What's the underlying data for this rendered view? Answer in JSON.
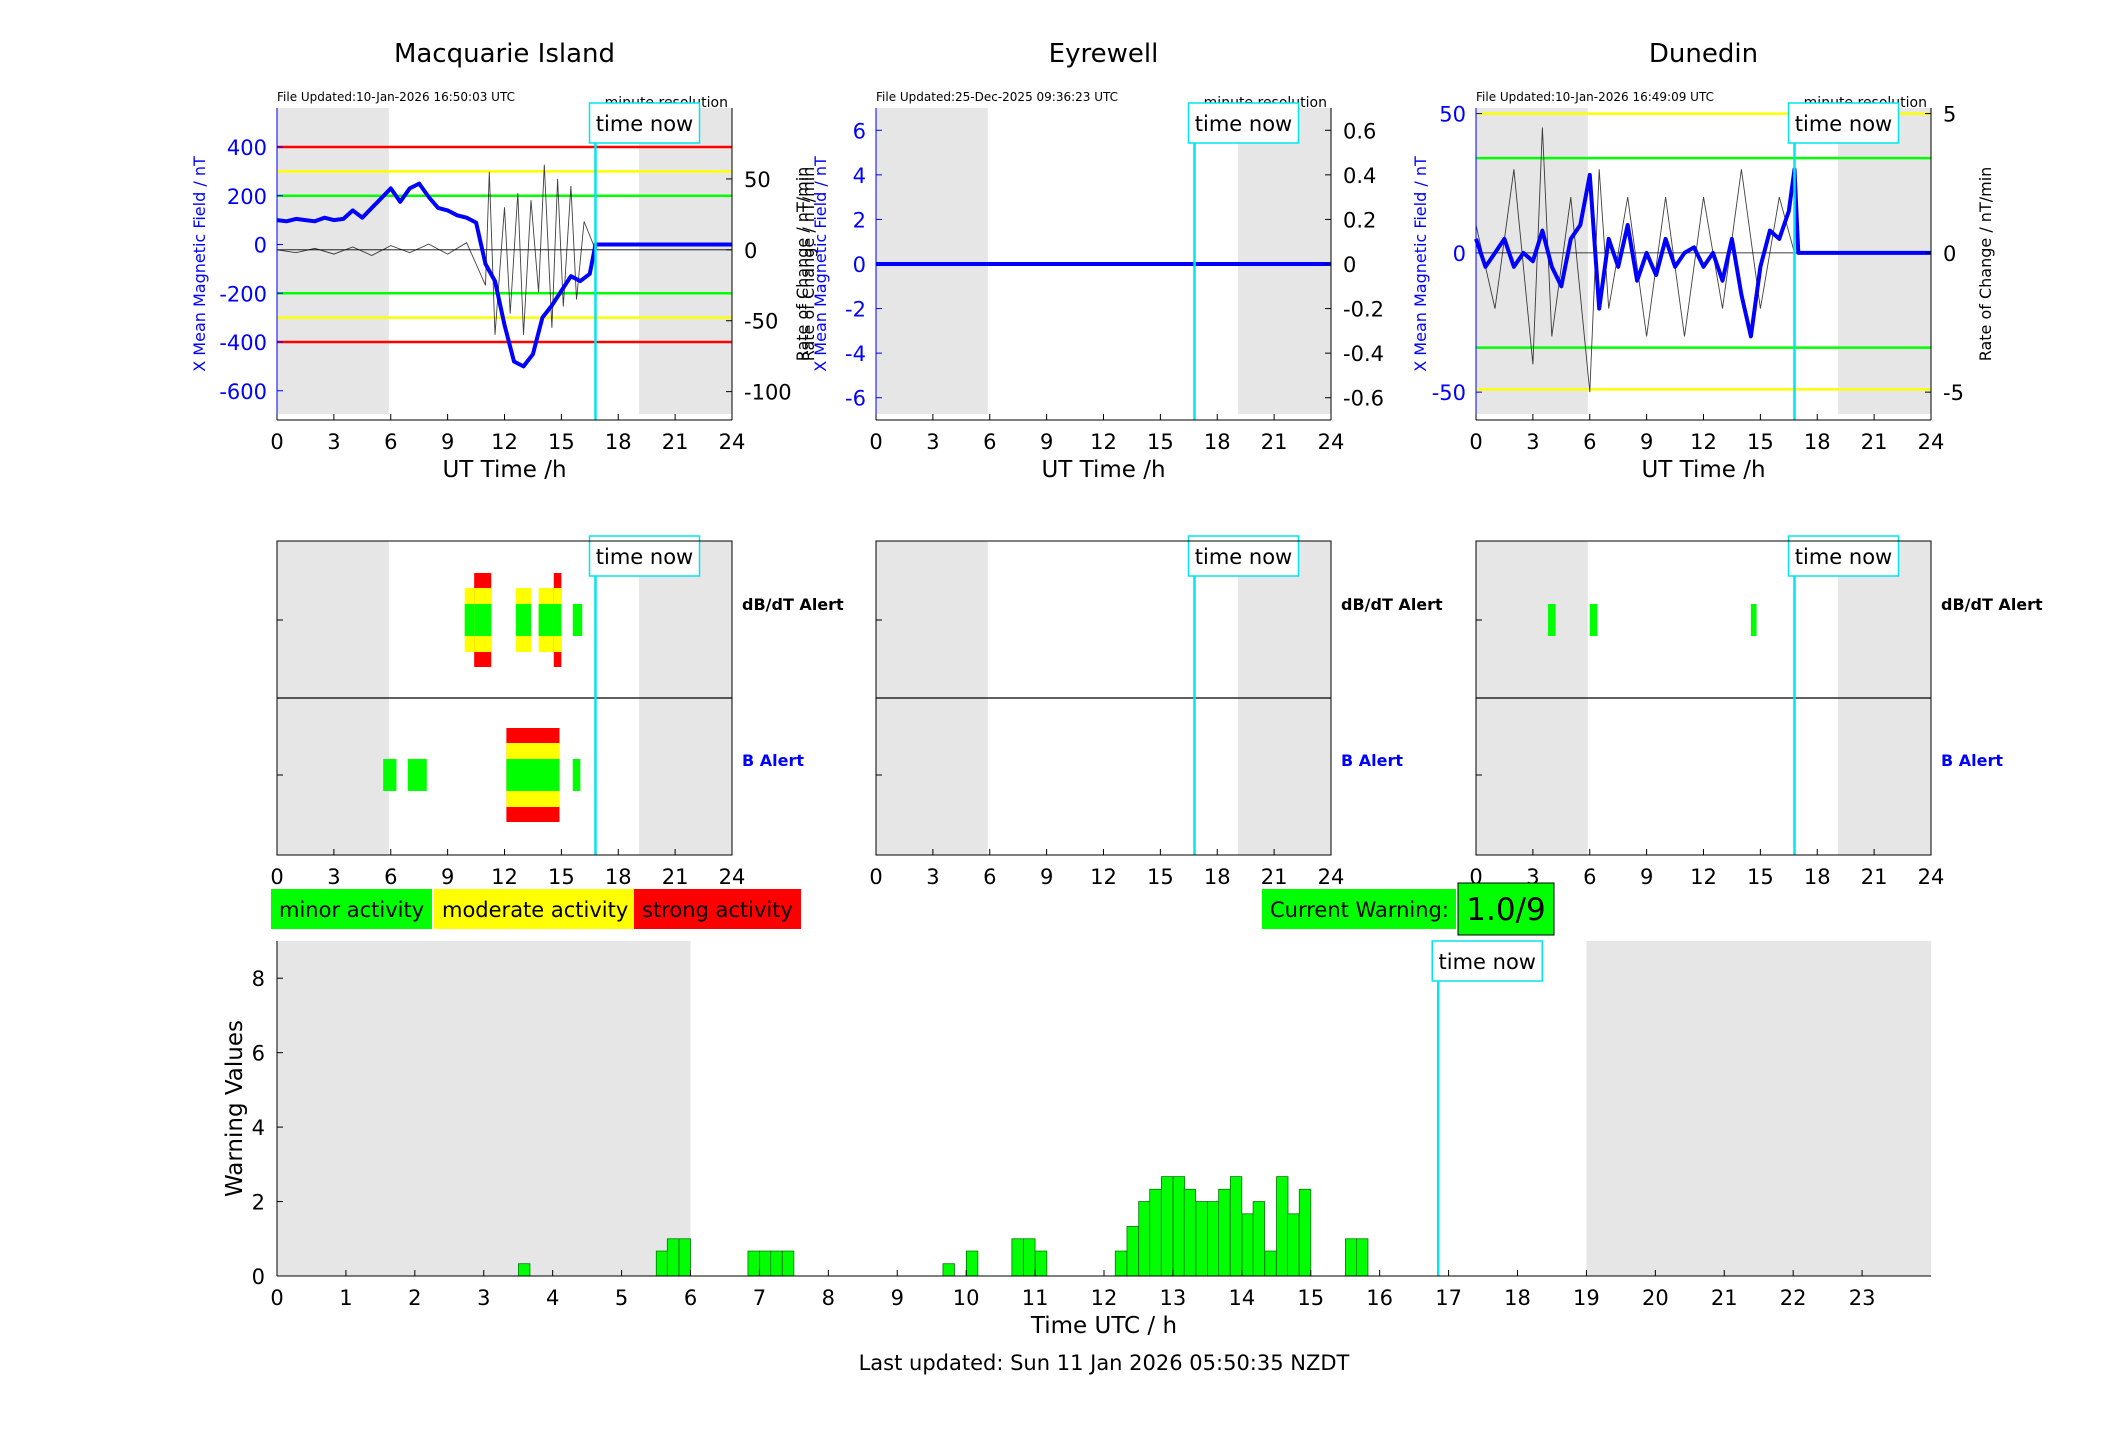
{
  "colors": {
    "field": "#0000ff",
    "rate": "#000000",
    "night_shade": "#e6e6e6",
    "now_line": "#00e5ee",
    "red": "#ff0000",
    "yellow": "#ffff00",
    "green": "#00ff00",
    "bar_fill": "#00ff00",
    "bar_edge": "#007a00"
  },
  "common": {
    "time_now_label": "time now",
    "resolution_label": "minute resolution",
    "x_label": "UT Time /h",
    "x_ticks": [
      0,
      3,
      6,
      9,
      12,
      15,
      18,
      21,
      24
    ],
    "xlim": [
      0,
      24
    ],
    "now_hour": 16.8,
    "night_periods": [
      [
        0,
        5.9
      ],
      [
        19.1,
        24
      ]
    ],
    "dbdt_alert_label": "dB/dT Alert",
    "b_alert_label": "B Alert"
  },
  "stations": [
    {
      "name": "Macquarie Island",
      "file_updated": "File Updated:10-Jan-2026 16:50:03 UTC",
      "left_ylabel": "X Mean Magnetic Field / nT",
      "right_ylabel": "Rate of Change / nT/min",
      "ylim_left": [
        -720,
        560
      ],
      "yticks_left": [
        400,
        200,
        0,
        -200,
        -400,
        -600
      ],
      "ylim_right": [
        -120,
        100
      ],
      "yticks_right": [
        50,
        0,
        -50,
        -100
      ],
      "threshold_lines": [
        {
          "value": 400,
          "color": "red"
        },
        {
          "value": 300,
          "color": "yellow"
        },
        {
          "value": 200,
          "color": "green"
        },
        {
          "value": -200,
          "color": "green"
        },
        {
          "value": -300,
          "color": "yellow"
        },
        {
          "value": -400,
          "color": "red"
        }
      ],
      "field_series": [
        [
          0,
          100
        ],
        [
          0.5,
          95
        ],
        [
          1,
          105
        ],
        [
          1.5,
          100
        ],
        [
          2,
          95
        ],
        [
          2.5,
          110
        ],
        [
          3,
          100
        ],
        [
          3.5,
          105
        ],
        [
          4,
          140
        ],
        [
          4.5,
          110
        ],
        [
          5,
          150
        ],
        [
          5.5,
          190
        ],
        [
          6,
          230
        ],
        [
          6.5,
          175
        ],
        [
          7,
          230
        ],
        [
          7.5,
          250
        ],
        [
          8,
          195
        ],
        [
          8.5,
          150
        ],
        [
          9,
          140
        ],
        [
          9.5,
          120
        ],
        [
          10,
          110
        ],
        [
          10.5,
          90
        ],
        [
          11,
          -80
        ],
        [
          11.5,
          -150
        ],
        [
          12,
          -330
        ],
        [
          12.5,
          -480
        ],
        [
          13,
          -500
        ],
        [
          13.5,
          -450
        ],
        [
          14,
          -300
        ],
        [
          14.5,
          -250
        ],
        [
          15,
          -190
        ],
        [
          15.5,
          -130
        ],
        [
          16,
          -150
        ],
        [
          16.5,
          -120
        ],
        [
          16.8,
          0
        ],
        [
          24,
          0
        ]
      ],
      "rate_series": [
        [
          0,
          0
        ],
        [
          1,
          -2
        ],
        [
          2,
          1
        ],
        [
          3,
          -3
        ],
        [
          4,
          2
        ],
        [
          5,
          -4
        ],
        [
          6,
          3
        ],
        [
          7,
          -2
        ],
        [
          8,
          4
        ],
        [
          9,
          -3
        ],
        [
          10,
          5
        ],
        [
          10.5,
          -10
        ],
        [
          11,
          -25
        ],
        [
          11.2,
          55
        ],
        [
          11.5,
          -60
        ],
        [
          12,
          30
        ],
        [
          12.3,
          -45
        ],
        [
          12.7,
          40
        ],
        [
          13,
          -60
        ],
        [
          13.4,
          35
        ],
        [
          13.8,
          -30
        ],
        [
          14.1,
          60
        ],
        [
          14.5,
          -55
        ],
        [
          14.8,
          50
        ],
        [
          15.1,
          -40
        ],
        [
          15.5,
          45
        ],
        [
          15.8,
          -35
        ],
        [
          16.2,
          20
        ],
        [
          16.8,
          0
        ]
      ],
      "dbdt_alerts": [
        {
          "start": 9.9,
          "end": 10.4,
          "level": "moderate"
        },
        {
          "start": 10.4,
          "end": 11.3,
          "level": "strong"
        },
        {
          "start": 12.6,
          "end": 13.4,
          "level": "moderate"
        },
        {
          "start": 13.8,
          "end": 14.6,
          "level": "moderate"
        },
        {
          "start": 14.6,
          "end": 15.0,
          "level": "strong"
        },
        {
          "start": 15.6,
          "end": 16.1,
          "level": "minor"
        }
      ],
      "b_alerts": [
        {
          "start": 5.6,
          "end": 6.3,
          "level": "minor"
        },
        {
          "start": 6.9,
          "end": 7.9,
          "level": "minor"
        },
        {
          "start": 12.1,
          "end": 14.9,
          "level": "strong"
        },
        {
          "start": 15.6,
          "end": 16.0,
          "level": "minor"
        }
      ]
    },
    {
      "name": "Eyrewell",
      "file_updated": "File Updated:25-Dec-2025 09:36:23 UTC",
      "left_ylabel": "X Mean Magnetic Field / nT",
      "right_ylabel": "Rate of Change / nT/min",
      "ylim_left": [
        -7,
        7
      ],
      "yticks_left": [
        6,
        4,
        2,
        0,
        -2,
        -4,
        -6
      ],
      "ylim_right": [
        -0.7,
        0.7
      ],
      "yticks_right": [
        0.6,
        0.4,
        0.2,
        0,
        -0.2,
        -0.4,
        -0.6
      ],
      "threshold_lines": [],
      "field_series": [
        [
          0,
          0
        ],
        [
          24,
          0
        ]
      ],
      "rate_series": [],
      "dbdt_alerts": [],
      "b_alerts": []
    },
    {
      "name": "Dunedin",
      "file_updated": "File Updated:10-Jan-2026 16:49:09 UTC",
      "left_ylabel": "X Mean Magnetic Field / nT",
      "right_ylabel": "Rate of Change / nT/min",
      "ylim_left": [
        -60,
        52
      ],
      "yticks_left": [
        50,
        0,
        -50
      ],
      "ylim_right": [
        -6,
        5.2
      ],
      "yticks_right": [
        5,
        0,
        -5
      ],
      "threshold_lines": [
        {
          "value": 50,
          "color": "yellow"
        },
        {
          "value": 34,
          "color": "green"
        },
        {
          "value": -34,
          "color": "green"
        },
        {
          "value": -49,
          "color": "yellow"
        }
      ],
      "field_series": [
        [
          0,
          5
        ],
        [
          0.5,
          -5
        ],
        [
          1,
          0
        ],
        [
          1.5,
          5
        ],
        [
          2,
          -5
        ],
        [
          2.5,
          0
        ],
        [
          3,
          -3
        ],
        [
          3.5,
          8
        ],
        [
          4,
          -5
        ],
        [
          4.5,
          -12
        ],
        [
          5,
          5
        ],
        [
          5.5,
          10
        ],
        [
          6,
          28
        ],
        [
          6.5,
          -20
        ],
        [
          7,
          5
        ],
        [
          7.5,
          -5
        ],
        [
          8,
          10
        ],
        [
          8.5,
          -10
        ],
        [
          9,
          0
        ],
        [
          9.5,
          -8
        ],
        [
          10,
          5
        ],
        [
          10.5,
          -5
        ],
        [
          11,
          0
        ],
        [
          11.5,
          2
        ],
        [
          12,
          -5
        ],
        [
          12.5,
          0
        ],
        [
          13,
          -10
        ],
        [
          13.5,
          5
        ],
        [
          14,
          -15
        ],
        [
          14.5,
          -30
        ],
        [
          15,
          -5
        ],
        [
          15.5,
          8
        ],
        [
          16,
          5
        ],
        [
          16.5,
          15
        ],
        [
          16.8,
          30
        ],
        [
          17,
          0
        ],
        [
          24,
          0
        ]
      ],
      "rate_series": [
        [
          0,
          1
        ],
        [
          1,
          -2
        ],
        [
          2,
          3
        ],
        [
          3,
          -4
        ],
        [
          3.5,
          4.5
        ],
        [
          4,
          -3
        ],
        [
          5,
          2
        ],
        [
          6,
          -5
        ],
        [
          6.5,
          3
        ],
        [
          7,
          -2
        ],
        [
          8,
          2
        ],
        [
          9,
          -3
        ],
        [
          10,
          2
        ],
        [
          11,
          -3
        ],
        [
          12,
          2
        ],
        [
          13,
          -2
        ],
        [
          14,
          3
        ],
        [
          15,
          -2
        ],
        [
          16,
          2
        ],
        [
          16.8,
          0
        ]
      ],
      "dbdt_alerts": [
        {
          "start": 3.8,
          "end": 4.2,
          "level": "minor"
        },
        {
          "start": 6.0,
          "end": 6.4,
          "level": "minor"
        },
        {
          "start": 14.5,
          "end": 14.8,
          "level": "minor"
        }
      ],
      "b_alerts": []
    }
  ],
  "legend": {
    "minor": "minor activity",
    "moderate": "moderate activity",
    "strong": "strong activity"
  },
  "current_warning": {
    "label": "Current Warning:",
    "value": "1.0/9"
  },
  "chart_data": {
    "type": "bar",
    "title": "",
    "xlabel": "Time UTC / h",
    "ylabel": "Warning Values",
    "xlim": [
      0,
      24
    ],
    "ylim": [
      0,
      9
    ],
    "x_ticks": [
      0,
      1,
      2,
      3,
      4,
      5,
      6,
      7,
      8,
      9,
      10,
      11,
      12,
      13,
      14,
      15,
      16,
      17,
      18,
      19,
      20,
      21,
      22,
      23
    ],
    "y_ticks": [
      0,
      2,
      4,
      6,
      8
    ],
    "night_periods": [
      [
        0,
        6
      ],
      [
        19,
        24
      ]
    ],
    "now_hour": 16.85,
    "bar_width_h": 0.1667,
    "bars": [
      {
        "x": 3.67,
        "value": 0.33
      },
      {
        "x": 5.67,
        "value": 0.67
      },
      {
        "x": 5.83,
        "value": 1.0
      },
      {
        "x": 6.0,
        "value": 1.0
      },
      {
        "x": 7.0,
        "value": 0.67
      },
      {
        "x": 7.17,
        "value": 0.67
      },
      {
        "x": 7.33,
        "value": 0.67
      },
      {
        "x": 7.5,
        "value": 0.67
      },
      {
        "x": 9.83,
        "value": 0.33
      },
      {
        "x": 10.17,
        "value": 0.67
      },
      {
        "x": 10.83,
        "value": 1.0
      },
      {
        "x": 11.0,
        "value": 1.0
      },
      {
        "x": 11.17,
        "value": 0.67
      },
      {
        "x": 12.33,
        "value": 0.67
      },
      {
        "x": 12.5,
        "value": 1.33
      },
      {
        "x": 12.67,
        "value": 2.0
      },
      {
        "x": 12.83,
        "value": 2.33
      },
      {
        "x": 13.0,
        "value": 2.67
      },
      {
        "x": 13.17,
        "value": 2.67
      },
      {
        "x": 13.33,
        "value": 2.33
      },
      {
        "x": 13.5,
        "value": 2.0
      },
      {
        "x": 13.67,
        "value": 2.0
      },
      {
        "x": 13.83,
        "value": 2.33
      },
      {
        "x": 14.0,
        "value": 2.67
      },
      {
        "x": 14.17,
        "value": 1.67
      },
      {
        "x": 14.33,
        "value": 2.0
      },
      {
        "x": 14.5,
        "value": 0.67
      },
      {
        "x": 14.67,
        "value": 2.67
      },
      {
        "x": 14.83,
        "value": 1.67
      },
      {
        "x": 15.0,
        "value": 2.33
      },
      {
        "x": 15.67,
        "value": 1.0
      },
      {
        "x": 15.83,
        "value": 1.0
      }
    ],
    "time_now_label": "time now"
  },
  "footer": {
    "last_updated": "Last updated: Sun 11 Jan 2026 05:50:35 NZDT"
  }
}
